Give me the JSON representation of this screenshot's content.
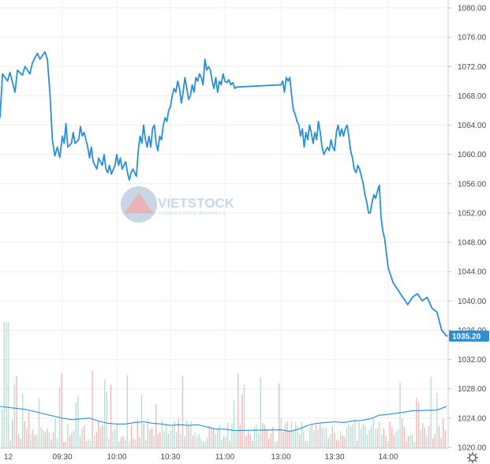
{
  "watermark": {
    "brand": "VIETSTOCK",
    "tagline": "CONNECTING MARKETS"
  },
  "chart_data": {
    "type": "line",
    "price_series": {
      "color": "#2a8fd6",
      "points": [
        [
          "09:05",
          1065.0
        ],
        [
          "09:06",
          1071.0
        ],
        [
          "09:08",
          1070.0
        ],
        [
          "09:09",
          1071.2
        ],
        [
          "09:11",
          1068.5
        ],
        [
          "09:12",
          1071.5
        ],
        [
          "09:14",
          1070.8
        ],
        [
          "09:15",
          1072.0
        ],
        [
          "09:17",
          1071.0
        ],
        [
          "09:18",
          1072.5
        ],
        [
          "09:20",
          1073.8
        ],
        [
          "09:21",
          1073.0
        ],
        [
          "09:23",
          1074.0
        ],
        [
          "09:24",
          1073.0
        ],
        [
          "09:25",
          1068.5
        ],
        [
          "09:26",
          1062.0
        ],
        [
          "09:27",
          1059.8
        ],
        [
          "09:28",
          1061.0
        ],
        [
          "09:29",
          1059.6
        ],
        [
          "09:30",
          1062.5
        ],
        [
          "09:31",
          1061.5
        ],
        [
          "09:32",
          1064.2
        ],
        [
          "09:33",
          1061.0
        ],
        [
          "09:35",
          1061.5
        ],
        [
          "09:36",
          1063.0
        ],
        [
          "09:37",
          1061.5
        ],
        [
          "09:39",
          1062.0
        ],
        [
          "09:40",
          1063.8
        ],
        [
          "09:41",
          1062.5
        ],
        [
          "09:42",
          1063.0
        ],
        [
          "09:44",
          1061.0
        ],
        [
          "09:45",
          1059.5
        ],
        [
          "09:46",
          1061.0
        ],
        [
          "09:47",
          1059.0
        ],
        [
          "09:49",
          1058.0
        ],
        [
          "09:50",
          1059.5
        ],
        [
          "09:52",
          1058.5
        ],
        [
          "09:53",
          1060.0
        ],
        [
          "09:54",
          1058.0
        ],
        [
          "09:55",
          1057.5
        ],
        [
          "09:56",
          1058.5
        ],
        [
          "09:57",
          1057.3
        ],
        [
          "09:59",
          1058.5
        ],
        [
          "10:00",
          1060.0
        ],
        [
          "10:01",
          1058.5
        ],
        [
          "10:02",
          1059.5
        ],
        [
          "10:03",
          1058.0
        ],
        [
          "10:05",
          1059.0
        ],
        [
          "10:06",
          1057.5
        ],
        [
          "10:07",
          1056.5
        ],
        [
          "10:08",
          1057.5
        ],
        [
          "10:09",
          1058.0
        ],
        [
          "10:11",
          1057.0
        ],
        [
          "10:12",
          1060.5
        ],
        [
          "10:13",
          1062.5
        ],
        [
          "10:14",
          1061.5
        ],
        [
          "10:15",
          1064.0
        ],
        [
          "10:16",
          1062.0
        ],
        [
          "10:17",
          1061.0
        ],
        [
          "10:18",
          1062.5
        ],
        [
          "10:19",
          1061.0
        ],
        [
          "10:20",
          1063.5
        ],
        [
          "10:21",
          1064.0
        ],
        [
          "10:22",
          1061.5
        ],
        [
          "10:23",
          1060.5
        ],
        [
          "10:24",
          1062.5
        ],
        [
          "10:25",
          1062.0
        ],
        [
          "10:26",
          1064.0
        ],
        [
          "10:27",
          1065.0
        ],
        [
          "10:28",
          1064.5
        ],
        [
          "10:29",
          1066.0
        ],
        [
          "10:30",
          1066.5
        ],
        [
          "10:31",
          1068.0
        ],
        [
          "10:32",
          1069.0
        ],
        [
          "10:33",
          1068.5
        ],
        [
          "10:34",
          1070.0
        ],
        [
          "10:35",
          1069.0
        ],
        [
          "10:36",
          1067.0
        ],
        [
          "10:37",
          1068.5
        ],
        [
          "10:38",
          1070.5
        ],
        [
          "10:39",
          1069.0
        ],
        [
          "10:40",
          1067.5
        ],
        [
          "10:41",
          1068.0
        ],
        [
          "10:42",
          1069.5
        ],
        [
          "10:43",
          1068.5
        ],
        [
          "10:44",
          1070.5
        ],
        [
          "10:45",
          1070.0
        ],
        [
          "10:46",
          1071.0
        ],
        [
          "10:47",
          1070.5
        ],
        [
          "10:48",
          1069.5
        ],
        [
          "10:49",
          1073.0
        ],
        [
          "10:50",
          1071.5
        ],
        [
          "10:51",
          1072.0
        ],
        [
          "10:52",
          1071.5
        ],
        [
          "10:53",
          1070.0
        ],
        [
          "10:54",
          1069.0
        ],
        [
          "10:55",
          1070.5
        ],
        [
          "10:56",
          1068.5
        ],
        [
          "10:57",
          1070.0
        ],
        [
          "10:58",
          1069.5
        ],
        [
          "10:59",
          1071.0
        ],
        [
          "11:00",
          1070.0
        ],
        [
          "11:01",
          1069.8
        ],
        [
          "11:02",
          1070.2
        ],
        [
          "11:03",
          1069.5
        ],
        [
          "11:04",
          1069.8
        ],
        [
          "11:05",
          1069.0
        ],
        [
          "11:06",
          1069.2
        ],
        [
          "13:00",
          1069.5
        ],
        [
          "13:01",
          1070.0
        ],
        [
          "13:02",
          1068.5
        ],
        [
          "13:03",
          1070.5
        ],
        [
          "13:04",
          1070.0
        ],
        [
          "13:05",
          1070.5
        ],
        [
          "13:06",
          1068.0
        ],
        [
          "13:07",
          1066.0
        ],
        [
          "13:08",
          1065.5
        ],
        [
          "13:09",
          1064.5
        ],
        [
          "13:10",
          1064.0
        ],
        [
          "13:11",
          1062.5
        ],
        [
          "13:12",
          1063.5
        ],
        [
          "13:13",
          1061.0
        ],
        [
          "13:14",
          1063.0
        ],
        [
          "13:15",
          1062.0
        ],
        [
          "13:16",
          1064.0
        ],
        [
          "13:17",
          1063.0
        ],
        [
          "13:18",
          1061.5
        ],
        [
          "13:19",
          1063.0
        ],
        [
          "13:20",
          1062.0
        ],
        [
          "13:21",
          1064.5
        ],
        [
          "13:22",
          1063.0
        ],
        [
          "13:23",
          1061.0
        ],
        [
          "13:24",
          1060.0
        ],
        [
          "13:25",
          1060.5
        ],
        [
          "13:26",
          1061.0
        ],
        [
          "13:27",
          1060.5
        ],
        [
          "13:28",
          1062.0
        ],
        [
          "13:29",
          1061.0
        ],
        [
          "13:30",
          1060.5
        ],
        [
          "13:31",
          1063.0
        ],
        [
          "13:32",
          1064.0
        ],
        [
          "13:33",
          1062.5
        ],
        [
          "13:34",
          1063.5
        ],
        [
          "13:35",
          1062.5
        ],
        [
          "13:36",
          1063.5
        ],
        [
          "13:37",
          1064.0
        ],
        [
          "13:38",
          1062.5
        ],
        [
          "13:39",
          1060.5
        ],
        [
          "13:40",
          1059.5
        ],
        [
          "13:41",
          1058.0
        ],
        [
          "13:42",
          1057.5
        ],
        [
          "13:43",
          1058.5
        ],
        [
          "13:44",
          1058.0
        ],
        [
          "13:45",
          1057.0
        ],
        [
          "13:46",
          1056.0
        ],
        [
          "13:47",
          1054.5
        ],
        [
          "13:48",
          1053.5
        ],
        [
          "13:49",
          1052.0
        ],
        [
          "13:50",
          1052.0
        ],
        [
          "13:51",
          1053.5
        ],
        [
          "13:52",
          1054.5
        ],
        [
          "13:53",
          1054.0
        ],
        [
          "13:54",
          1055.0
        ],
        [
          "13:55",
          1055.8
        ],
        [
          "13:56",
          1051.5
        ],
        [
          "13:57",
          1049.5
        ],
        [
          "13:58",
          1048.5
        ],
        [
          "13:59",
          1046.5
        ],
        [
          "14:00",
          1044.5
        ],
        [
          "14:01",
          1042.5
        ],
        [
          "14:02",
          1041.5
        ],
        [
          "14:03",
          1040.5
        ],
        [
          "14:04",
          1039.5
        ],
        [
          "14:05",
          1040.5
        ],
        [
          "14:06",
          1041.0
        ],
        [
          "14:07",
          1040.0
        ],
        [
          "14:08",
          1040.5
        ],
        [
          "14:09",
          1039.0
        ],
        [
          "14:10",
          1038.5
        ],
        [
          "14:11",
          1036.0
        ],
        [
          "14:12",
          1035.2
        ]
      ]
    },
    "volume_avg_line": {
      "color": "#2a8fd6",
      "points": [
        [
          "09:05",
          1025.6
        ],
        [
          "09:10",
          1025.4
        ],
        [
          "09:15",
          1025.2
        ],
        [
          "09:20",
          1024.8
        ],
        [
          "09:25",
          1024.4
        ],
        [
          "09:30",
          1024.0
        ],
        [
          "09:35",
          1023.8
        ],
        [
          "09:40",
          1023.9
        ],
        [
          "09:45",
          1024.0
        ],
        [
          "09:50",
          1023.6
        ],
        [
          "09:55",
          1023.3
        ],
        [
          "10:00",
          1023.2
        ],
        [
          "10:05",
          1023.2
        ],
        [
          "10:10",
          1023.4
        ],
        [
          "10:15",
          1023.5
        ],
        [
          "10:20",
          1023.3
        ],
        [
          "10:25",
          1023.2
        ],
        [
          "10:30",
          1023.0
        ],
        [
          "10:35",
          1023.1
        ],
        [
          "10:40",
          1023.0
        ],
        [
          "10:45",
          1023.1
        ],
        [
          "10:50",
          1022.8
        ],
        [
          "10:55",
          1022.5
        ],
        [
          "11:00",
          1022.5
        ],
        [
          "11:05",
          1022.3
        ],
        [
          "13:00",
          1022.4
        ],
        [
          "13:05",
          1022.2
        ],
        [
          "13:10",
          1022.5
        ],
        [
          "13:15",
          1023.0
        ],
        [
          "13:20",
          1023.3
        ],
        [
          "13:25",
          1023.4
        ],
        [
          "13:30",
          1023.5
        ],
        [
          "13:35",
          1023.4
        ],
        [
          "13:40",
          1023.6
        ],
        [
          "13:45",
          1023.7
        ],
        [
          "13:50",
          1023.9
        ],
        [
          "13:55",
          1024.4
        ],
        [
          "14:00",
          1024.5
        ],
        [
          "14:05",
          1025.0
        ],
        [
          "14:10",
          1025.1
        ],
        [
          "14:12",
          1025.6
        ]
      ]
    },
    "volume_bars": {
      "up_color": "#b9dfd4",
      "down_color": "#f0b8b8"
    },
    "x_axis": {
      "first_label": "12",
      "ticks": [
        "09:30",
        "10:00",
        "10:30",
        "11:00",
        "13:00",
        "13:30",
        "14:00"
      ]
    },
    "y_axis": {
      "ticks": [
        "1080.00",
        "1076.00",
        "1072.00",
        "1068.00",
        "1064.00",
        "1060.00",
        "1056.00",
        "1052.00",
        "1048.00",
        "1044.00",
        "1040.00",
        "1036.00",
        "1032.00",
        "1028.00",
        "1024.00",
        "1020.00"
      ],
      "range": [
        1020,
        1080
      ]
    },
    "last_price": {
      "value": 1035.2,
      "label": "1035.20",
      "color": "#2a8fd6"
    },
    "grid": true
  }
}
